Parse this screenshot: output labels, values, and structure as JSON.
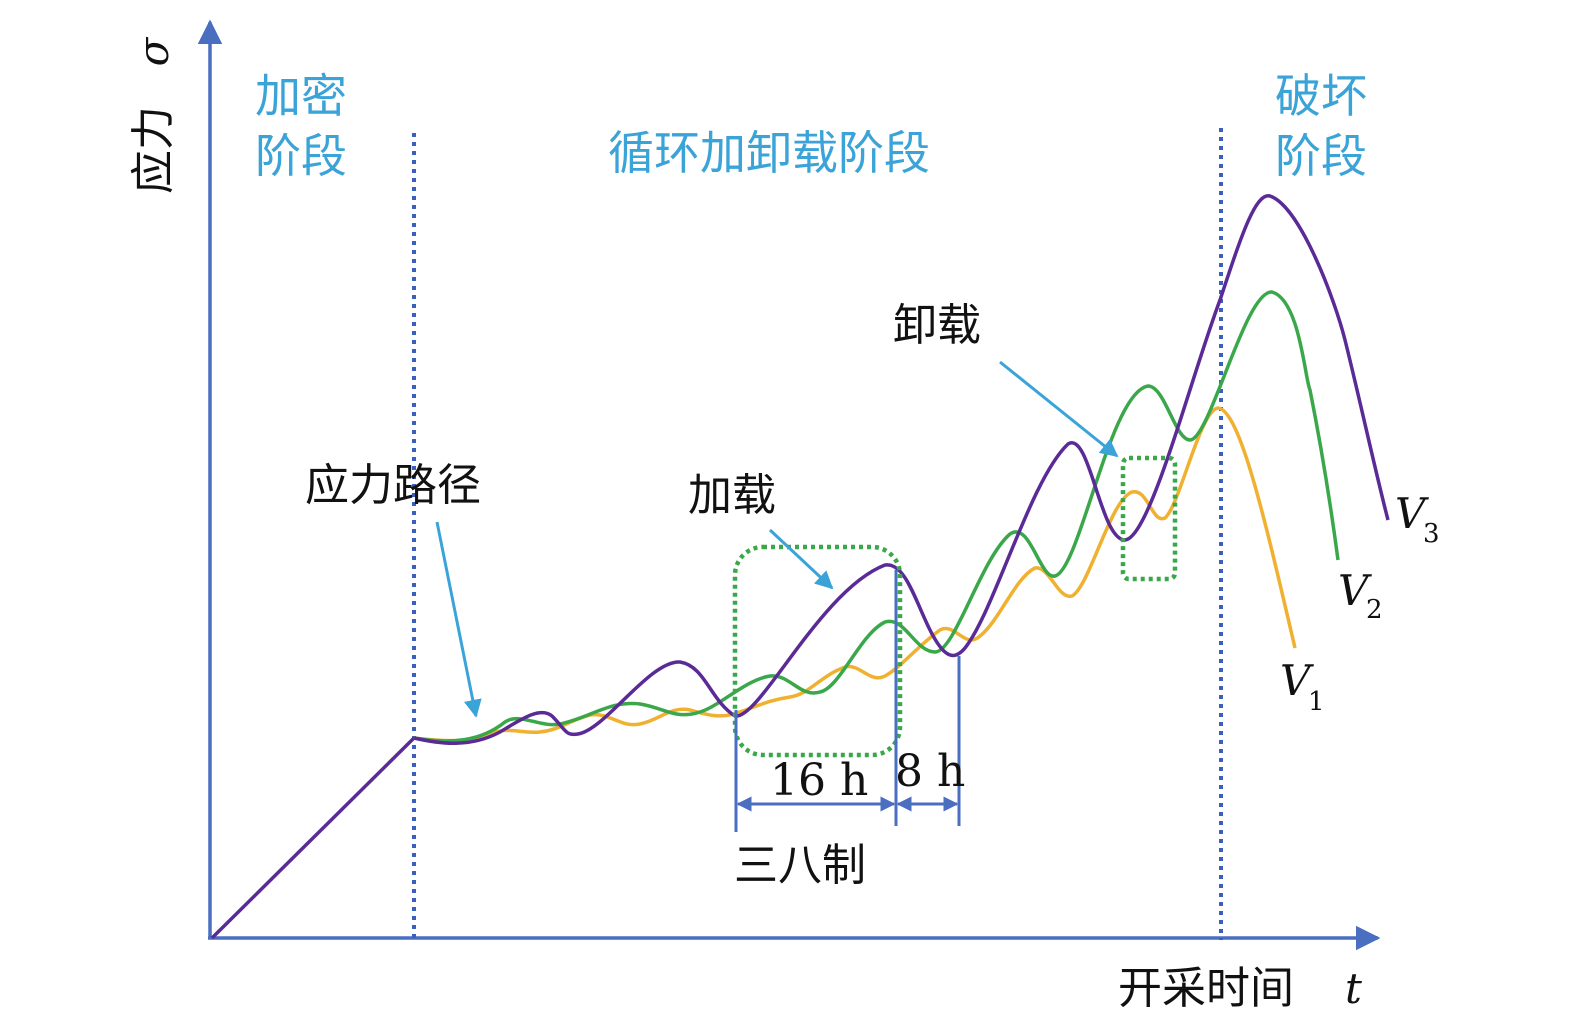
{
  "axes": {
    "y_label": "应力",
    "y_symbol": "σ",
    "x_label": "开采时间",
    "x_symbol": "t"
  },
  "stages": {
    "densification_line1": "加密",
    "densification_line2": "阶段",
    "cyclic": "循环加卸载阶段",
    "failure_line1": "破坏",
    "failure_line2": "阶段"
  },
  "annotations": {
    "stress_path": "应力路径",
    "loading": "加载",
    "unloading": "卸载",
    "hours_16": "16 h",
    "hours_8": "8 h",
    "three_shift": "三八制"
  },
  "series": [
    {
      "name": "V",
      "subscript": "1",
      "color": "#f0b030"
    },
    {
      "name": "V",
      "subscript": "2",
      "color": "#3aa84a"
    },
    {
      "name": "V",
      "subscript": "3",
      "color": "#5a2a96"
    }
  ],
  "colors": {
    "axis": "#4a6fc0",
    "divider": "#3a5fc0",
    "stage_text": "#3aa3d8",
    "callout_arrow": "#3aa3d8",
    "highlight_box": "#3aa84a"
  }
}
